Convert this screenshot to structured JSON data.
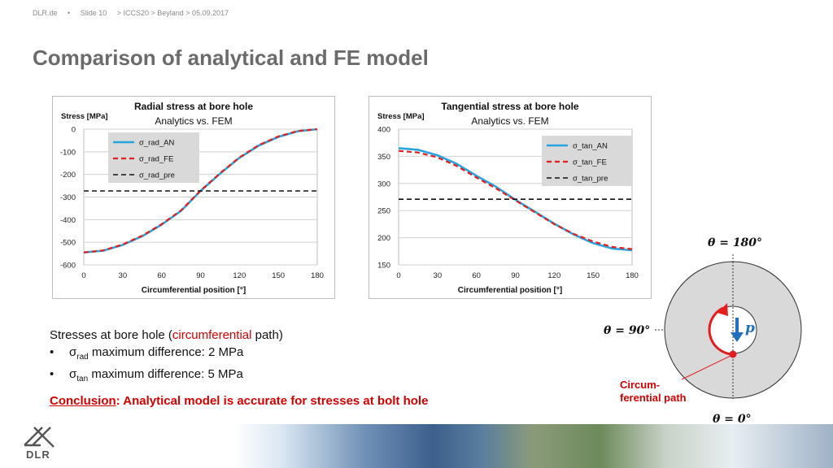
{
  "header": {
    "site": "DLR.de",
    "slide": "Slide 10",
    "path": "> ICCS20 > Beyland > 05.09.2017",
    "title": "Comparison of analytical and FE model"
  },
  "colors": {
    "an": "#29a3e0",
    "fe": "#e21e1e",
    "pre": "#111111",
    "accent": "#d40000"
  },
  "chart_data": [
    {
      "type": "line",
      "title": "Radial stress at bore hole",
      "subtitle": "Analytics vs. FEM",
      "ylabel": "Stress [MPa]",
      "xlabel": "Circumferential position [°]",
      "xlim": [
        0,
        180
      ],
      "ylim": [
        -600,
        0
      ],
      "xticks": [
        "0",
        "30",
        "60",
        "90",
        "120",
        "150",
        "180"
      ],
      "yticks": [
        "0",
        "-100",
        "-200",
        "-300",
        "-400",
        "-500",
        "-600"
      ],
      "legend": "inside-left",
      "grid": true,
      "x": [
        0,
        15,
        30,
        45,
        60,
        75,
        90,
        105,
        120,
        135,
        150,
        165,
        180
      ],
      "series": [
        {
          "name": "σ_rad_AN",
          "style": "solid",
          "values": [
            -545,
            -537,
            -512,
            -473,
            -422,
            -361,
            -273,
            -197,
            -127,
            -72,
            -34,
            -9,
            0
          ]
        },
        {
          "name": "σ_rad_FE",
          "style": "dashed",
          "values": [
            -545,
            -536,
            -510,
            -471,
            -420,
            -359,
            -272,
            -195,
            -125,
            -70,
            -32,
            -8,
            0
          ]
        },
        {
          "name": "σ_rad_pre",
          "style": "dashed",
          "values": [
            -273,
            -273,
            -273,
            -273,
            -273,
            -273,
            -273,
            -273,
            -273,
            -273,
            -273,
            -273,
            -273
          ]
        }
      ]
    },
    {
      "type": "line",
      "title": "Tangential stress at bore hole",
      "subtitle": "Analytics vs. FEM",
      "ylabel": "Stress [MPa]",
      "xlabel": "Circumferential position [°]",
      "xlim": [
        0,
        180
      ],
      "ylim": [
        150,
        400
      ],
      "xticks": [
        "0",
        "30",
        "60",
        "90",
        "120",
        "150",
        "180"
      ],
      "yticks": [
        "400",
        "350",
        "300",
        "250",
        "200",
        "150"
      ],
      "legend": "inside-right",
      "grid": true,
      "x": [
        0,
        15,
        30,
        45,
        60,
        75,
        90,
        105,
        120,
        135,
        150,
        165,
        180
      ],
      "series": [
        {
          "name": "σ_tan_AN",
          "style": "solid",
          "values": [
            365,
            362,
            352,
            336,
            314,
            294,
            270,
            248,
            226,
            206,
            190,
            180,
            177
          ]
        },
        {
          "name": "σ_tan_FE",
          "style": "dashed",
          "values": [
            360,
            357,
            348,
            332,
            311,
            291,
            269,
            247,
            225,
            207,
            193,
            183,
            179
          ]
        },
        {
          "name": "σ_tan_pre",
          "style": "dashed",
          "values": [
            271,
            271,
            271,
            271,
            271,
            271,
            271,
            271,
            271,
            271,
            271,
            271,
            271
          ]
        }
      ]
    }
  ],
  "text": {
    "stresses_pre": "Stresses at bore hole (",
    "stresses_accent": "circumferential",
    "stresses_post": " path)",
    "bullet_dot": "•",
    "rad_sym": "σ",
    "rad_sub": "rad",
    "rad_text": " maximum difference: 2 MPa",
    "tan_sym": "σ",
    "tan_sub": "tan",
    "tan_text": " maximum difference: 5 MPa",
    "conclusion_label": "Conclusion",
    "conclusion_text": ": Analytical model is accurate for stresses at bolt hole"
  },
  "diagram": {
    "theta180": "θ = 180°",
    "theta90": "θ = 90°",
    "theta0": "θ = 0°",
    "p_label": "p",
    "path_line1": "Circum-",
    "path_line2": "ferential path"
  },
  "logo": {
    "text": "DLR"
  }
}
